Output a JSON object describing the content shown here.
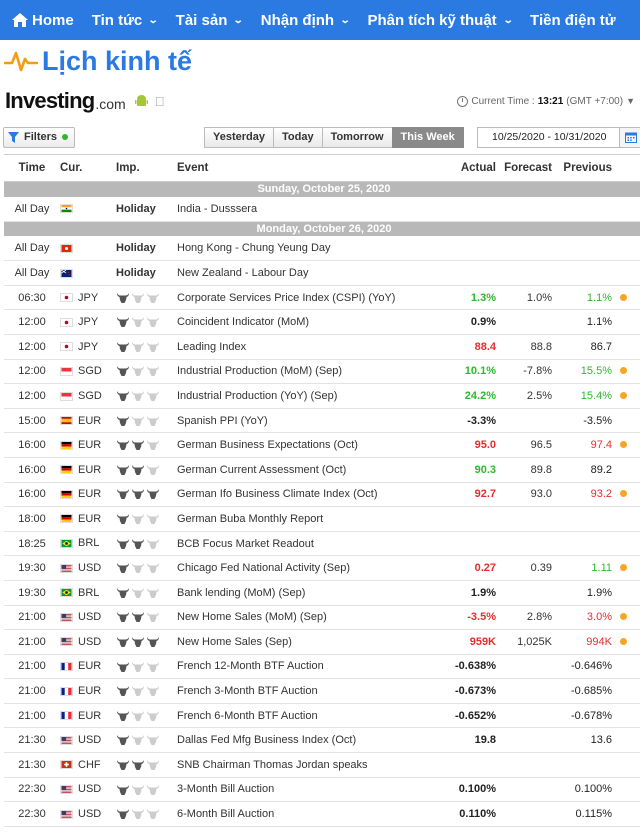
{
  "nav": {
    "home": "Home",
    "items": [
      "Tin tức",
      "Tài sản",
      "Nhận định",
      "Phân tích kỹ thuật",
      "Tiền điện tử"
    ]
  },
  "page_title": "Lịch kinh tế",
  "brand": {
    "name": "Investing",
    "suffix": ".com"
  },
  "current_time": {
    "label": "Current Time :",
    "time": "13:21",
    "zone": "(GMT +7:00)"
  },
  "filters": {
    "label": "Filters"
  },
  "day_tabs": [
    "Yesterday",
    "Today",
    "Tomorrow",
    "This Week"
  ],
  "active_tab": "This Week",
  "date_range": "10/25/2020 - 10/31/2020",
  "columns": {
    "time": "Time",
    "cur": "Cur.",
    "imp": "Imp.",
    "event": "Event",
    "actual": "Actual",
    "forecast": "Forecast",
    "previous": "Previous"
  },
  "colors": {
    "accent": "#2a7ae2",
    "positive": "#2eb82e",
    "negative": "#e52d2d",
    "revised": "#f5a623"
  },
  "rows": [
    {
      "type": "day",
      "label": "Sunday, October 25, 2020"
    },
    {
      "type": "holiday",
      "time": "All Day",
      "flag": "in",
      "imp": "Holiday",
      "event": "India - Dusssera"
    },
    {
      "type": "day",
      "label": "Monday, October 26, 2020"
    },
    {
      "type": "holiday",
      "time": "All Day",
      "flag": "hk",
      "imp": "Holiday",
      "event": "Hong Kong - Chung Yeung Day"
    },
    {
      "type": "holiday",
      "time": "All Day",
      "flag": "nz",
      "imp": "Holiday",
      "event": "New Zealand - Labour Day"
    },
    {
      "type": "event",
      "time": "06:30",
      "flag": "jp",
      "cur": "JPY",
      "imp": 1,
      "event": "Corporate Services Price Index (CSPI) (YoY)",
      "actual": "1.3%",
      "actual_c": "pos",
      "forecast": "1.0%",
      "previous": "1.1%",
      "previous_c": "pos",
      "dot": true
    },
    {
      "type": "event",
      "time": "12:00",
      "flag": "jp",
      "cur": "JPY",
      "imp": 1,
      "event": "Coincident Indicator (MoM)",
      "actual": "0.9%",
      "actual_c": "neu",
      "forecast": "",
      "previous": "1.1%",
      "previous_c": "neu",
      "dot": false
    },
    {
      "type": "event",
      "time": "12:00",
      "flag": "jp",
      "cur": "JPY",
      "imp": 1,
      "event": "Leading Index",
      "actual": "88.4",
      "actual_c": "neg",
      "forecast": "88.8",
      "previous": "86.7",
      "previous_c": "neu",
      "dot": false
    },
    {
      "type": "event",
      "time": "12:00",
      "flag": "sg",
      "cur": "SGD",
      "imp": 1,
      "event": "Industrial Production (MoM) (Sep)",
      "actual": "10.1%",
      "actual_c": "pos",
      "forecast": "-7.8%",
      "previous": "15.5%",
      "previous_c": "pos",
      "dot": true
    },
    {
      "type": "event",
      "time": "12:00",
      "flag": "sg",
      "cur": "SGD",
      "imp": 1,
      "event": "Industrial Production (YoY) (Sep)",
      "actual": "24.2%",
      "actual_c": "pos",
      "forecast": "2.5%",
      "previous": "15.4%",
      "previous_c": "pos",
      "dot": true
    },
    {
      "type": "event",
      "time": "15:00",
      "flag": "es",
      "cur": "EUR",
      "imp": 1,
      "event": "Spanish PPI (YoY)",
      "actual": "-3.3%",
      "actual_c": "neu",
      "forecast": "",
      "previous": "-3.5%",
      "previous_c": "neu",
      "dot": false
    },
    {
      "type": "event",
      "time": "16:00",
      "flag": "de",
      "cur": "EUR",
      "imp": 2,
      "event": "German Business Expectations (Oct)",
      "actual": "95.0",
      "actual_c": "neg",
      "forecast": "96.5",
      "previous": "97.4",
      "previous_c": "neg",
      "dot": true
    },
    {
      "type": "event",
      "time": "16:00",
      "flag": "de",
      "cur": "EUR",
      "imp": 2,
      "event": "German Current Assessment (Oct)",
      "actual": "90.3",
      "actual_c": "pos",
      "forecast": "89.8",
      "previous": "89.2",
      "previous_c": "neu",
      "dot": false
    },
    {
      "type": "event",
      "time": "16:00",
      "flag": "de",
      "cur": "EUR",
      "imp": 3,
      "event": "German Ifo Business Climate Index (Oct)",
      "actual": "92.7",
      "actual_c": "neg",
      "forecast": "93.0",
      "previous": "93.2",
      "previous_c": "neg",
      "dot": true
    },
    {
      "type": "event",
      "time": "18:00",
      "flag": "de",
      "cur": "EUR",
      "imp": 1,
      "event": "German Buba Monthly Report",
      "actual": "",
      "actual_c": "neu",
      "forecast": "",
      "previous": "",
      "previous_c": "neu",
      "dot": false
    },
    {
      "type": "event",
      "time": "18:25",
      "flag": "br",
      "cur": "BRL",
      "imp": 2,
      "event": "BCB Focus Market Readout",
      "actual": "",
      "actual_c": "neu",
      "forecast": "",
      "previous": "",
      "previous_c": "neu",
      "dot": false
    },
    {
      "type": "event",
      "time": "19:30",
      "flag": "us",
      "cur": "USD",
      "imp": 1,
      "event": "Chicago Fed National Activity (Sep)",
      "actual": "0.27",
      "actual_c": "neg",
      "forecast": "0.39",
      "previous": "1.11",
      "previous_c": "pos",
      "dot": true
    },
    {
      "type": "event",
      "time": "19:30",
      "flag": "br",
      "cur": "BRL",
      "imp": 1,
      "event": "Bank lending (MoM) (Sep)",
      "actual": "1.9%",
      "actual_c": "neu",
      "forecast": "",
      "previous": "1.9%",
      "previous_c": "neu",
      "dot": false
    },
    {
      "type": "event",
      "time": "21:00",
      "flag": "us",
      "cur": "USD",
      "imp": 2,
      "event": "New Home Sales (MoM) (Sep)",
      "actual": "-3.5%",
      "actual_c": "neg",
      "forecast": "2.8%",
      "previous": "3.0%",
      "previous_c": "neg",
      "dot": true
    },
    {
      "type": "event",
      "time": "21:00",
      "flag": "us",
      "cur": "USD",
      "imp": 3,
      "event": "New Home Sales (Sep)",
      "actual": "959K",
      "actual_c": "neg",
      "forecast": "1,025K",
      "previous": "994K",
      "previous_c": "neg",
      "dot": true
    },
    {
      "type": "event",
      "time": "21:00",
      "flag": "fr",
      "cur": "EUR",
      "imp": 1,
      "event": "French 12-Month BTF Auction",
      "actual": "-0.638%",
      "actual_c": "neu",
      "forecast": "",
      "previous": "-0.646%",
      "previous_c": "neu",
      "dot": false
    },
    {
      "type": "event",
      "time": "21:00",
      "flag": "fr",
      "cur": "EUR",
      "imp": 1,
      "event": "French 3-Month BTF Auction",
      "actual": "-0.673%",
      "actual_c": "neu",
      "forecast": "",
      "previous": "-0.685%",
      "previous_c": "neu",
      "dot": false
    },
    {
      "type": "event",
      "time": "21:00",
      "flag": "fr",
      "cur": "EUR",
      "imp": 1,
      "event": "French 6-Month BTF Auction",
      "actual": "-0.652%",
      "actual_c": "neu",
      "forecast": "",
      "previous": "-0.678%",
      "previous_c": "neu",
      "dot": false
    },
    {
      "type": "event",
      "time": "21:30",
      "flag": "us",
      "cur": "USD",
      "imp": 1,
      "event": "Dallas Fed Mfg Business Index (Oct)",
      "actual": "19.8",
      "actual_c": "neu",
      "forecast": "",
      "previous": "13.6",
      "previous_c": "neu",
      "dot": false
    },
    {
      "type": "event",
      "time": "21:30",
      "flag": "ch",
      "cur": "CHF",
      "imp": 2,
      "event": "SNB Chairman Thomas Jordan speaks",
      "actual": "",
      "actual_c": "neu",
      "forecast": "",
      "previous": "",
      "previous_c": "neu",
      "dot": false
    },
    {
      "type": "event",
      "time": "22:30",
      "flag": "us",
      "cur": "USD",
      "imp": 1,
      "event": "3-Month Bill Auction",
      "actual": "0.100%",
      "actual_c": "neu",
      "forecast": "",
      "previous": "0.100%",
      "previous_c": "neu",
      "dot": false
    },
    {
      "type": "event",
      "time": "22:30",
      "flag": "us",
      "cur": "USD",
      "imp": 1,
      "event": "6-Month Bill Auction",
      "actual": "0.110%",
      "actual_c": "neu",
      "forecast": "",
      "previous": "0.115%",
      "previous_c": "neu",
      "dot": false
    }
  ]
}
